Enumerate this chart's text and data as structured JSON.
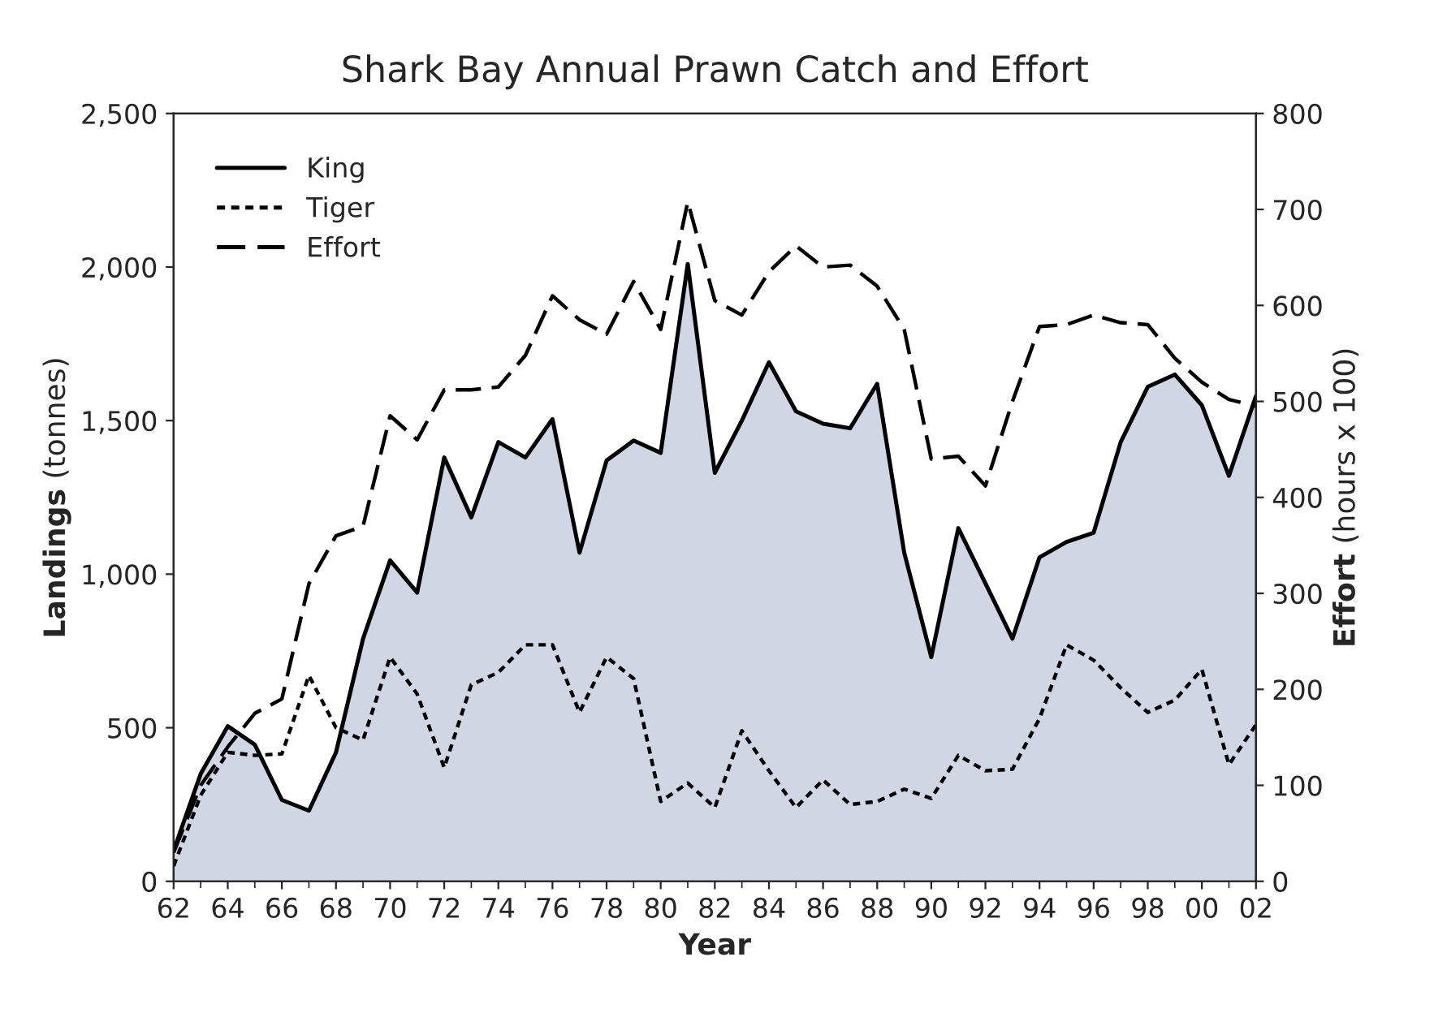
{
  "chart_data": {
    "type": "line",
    "title": "Shark Bay Annual Prawn Catch and Effort",
    "xlabel": "Year",
    "ylabel": "Landings (tonnes)",
    "y2label": "Effort (hours x 100)",
    "x": [
      1962,
      1963,
      1964,
      1965,
      1966,
      1967,
      1968,
      1969,
      1970,
      1971,
      1972,
      1973,
      1974,
      1975,
      1976,
      1977,
      1978,
      1979,
      1980,
      1981,
      1982,
      1983,
      1984,
      1985,
      1986,
      1987,
      1988,
      1989,
      1990,
      1991,
      1992,
      1993,
      1994,
      1995,
      1996,
      1997,
      1998,
      1999,
      2000,
      2001,
      2002
    ],
    "series": [
      {
        "name": "King",
        "type": "area",
        "color": "#d0d6e3",
        "line_style": "solid",
        "values": [
          100,
          350,
          505,
          445,
          265,
          230,
          420,
          790,
          1045,
          940,
          1380,
          1185,
          1430,
          1380,
          1505,
          1070,
          1370,
          1435,
          1395,
          2010,
          1330,
          1500,
          1690,
          1530,
          1490,
          1475,
          1620,
          1070,
          730,
          1150,
          970,
          790,
          1055,
          1105,
          1135,
          1430,
          1610,
          1650,
          1550,
          1320,
          1580
        ]
      },
      {
        "name": "Tiger",
        "color": "#000000",
        "line_style": "dotted",
        "values": [
          50,
          280,
          420,
          410,
          415,
          670,
          500,
          460,
          730,
          610,
          370,
          640,
          680,
          770,
          770,
          550,
          730,
          660,
          260,
          320,
          240,
          490,
          360,
          240,
          330,
          250,
          260,
          300,
          270,
          410,
          360,
          365,
          530,
          770,
          720,
          630,
          550,
          590,
          690,
          380,
          510
        ]
      },
      {
        "name": "Effort",
        "color": "#000000",
        "line_style": "dashed",
        "axis": "y2",
        "values": [
          30,
          100,
          140,
          175,
          190,
          310,
          360,
          370,
          485,
          460,
          512,
          512,
          515,
          548,
          610,
          585,
          570,
          625,
          575,
          708,
          605,
          590,
          635,
          662,
          640,
          642,
          620,
          575,
          440,
          443,
          412,
          500,
          578,
          580,
          590,
          582,
          580,
          545,
          520,
          502,
          495
        ]
      }
    ],
    "xlim": [
      1962,
      2002
    ],
    "xticks": [
      {
        "value": 1962,
        "label": "62"
      },
      {
        "value": 1964,
        "label": "64"
      },
      {
        "value": 1966,
        "label": "66"
      },
      {
        "value": 1968,
        "label": "68"
      },
      {
        "value": 1970,
        "label": "70"
      },
      {
        "value": 1972,
        "label": "72"
      },
      {
        "value": 1974,
        "label": "74"
      },
      {
        "value": 1976,
        "label": "76"
      },
      {
        "value": 1978,
        "label": "78"
      },
      {
        "value": 1980,
        "label": "80"
      },
      {
        "value": 1982,
        "label": "82"
      },
      {
        "value": 1984,
        "label": "84"
      },
      {
        "value": 1986,
        "label": "86"
      },
      {
        "value": 1988,
        "label": "88"
      },
      {
        "value": 1990,
        "label": "90"
      },
      {
        "value": 1992,
        "label": "92"
      },
      {
        "value": 1994,
        "label": "94"
      },
      {
        "value": 1996,
        "label": "96"
      },
      {
        "value": 1998,
        "label": "98"
      },
      {
        "value": 2000,
        "label": "00"
      },
      {
        "value": 2002,
        "label": "02"
      }
    ],
    "ylim": [
      0,
      2500
    ],
    "yticks": [
      0,
      500,
      {
        "value": 1000,
        "label": "1,000"
      },
      {
        "value": 1500,
        "label": "1,500"
      },
      {
        "value": 2000,
        "label": "2,000"
      },
      {
        "value": 2500,
        "label": "2,500"
      }
    ],
    "y2lim": [
      0,
      800
    ],
    "y2ticks": [
      0,
      100,
      200,
      300,
      400,
      500,
      600,
      700,
      800
    ],
    "grid": false,
    "legend": "top left"
  }
}
